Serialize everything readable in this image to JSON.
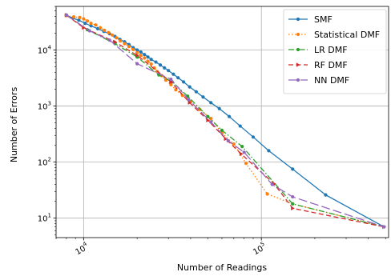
{
  "chart_data": {
    "type": "line",
    "title": "",
    "xlabel": "Number of Readings",
    "ylabel": "Number of Errors",
    "xscale": "log",
    "yscale": "log",
    "xlim": [
      7000,
      520000
    ],
    "ylim": [
      4.5,
      60000
    ],
    "x_ticks": [
      {
        "value": 10000,
        "base": "10",
        "exp": "4"
      },
      {
        "value": 100000,
        "base": "10",
        "exp": "5"
      }
    ],
    "y_ticks": [
      {
        "value": 10,
        "base": "10",
        "exp": "1"
      },
      {
        "value": 100,
        "base": "10",
        "exp": "2"
      },
      {
        "value": 1000,
        "base": "10",
        "exp": "3"
      },
      {
        "value": 10000,
        "base": "10",
        "exp": "4"
      }
    ],
    "grid": true,
    "legend_position": "top-right",
    "series": [
      {
        "name": "SMF",
        "color": "#1f77b4",
        "dash": "",
        "marker": "circle",
        "points": [
          [
            8000,
            42000
          ],
          [
            8700,
            37000
          ],
          [
            9400,
            34000
          ],
          [
            10200,
            30000
          ],
          [
            11000,
            27000
          ],
          [
            12000,
            24000
          ],
          [
            13000,
            21500
          ],
          [
            14000,
            19500
          ],
          [
            15000,
            17500
          ],
          [
            16000,
            15500
          ],
          [
            17000,
            14000
          ],
          [
            18000,
            12500
          ],
          [
            19000,
            11000
          ],
          [
            20000,
            10000
          ],
          [
            21000,
            9200
          ],
          [
            22000,
            8300
          ],
          [
            23000,
            7500
          ],
          [
            24000,
            6800
          ],
          [
            25500,
            6100
          ],
          [
            27000,
            5400
          ],
          [
            28500,
            4800
          ],
          [
            30000,
            4300
          ],
          [
            32000,
            3700
          ],
          [
            34000,
            3200
          ],
          [
            36500,
            2700
          ],
          [
            39500,
            2200
          ],
          [
            43000,
            1800
          ],
          [
            47000,
            1450
          ],
          [
            52000,
            1150
          ],
          [
            58000,
            900
          ],
          [
            66000,
            650
          ],
          [
            76000,
            440
          ],
          [
            90000,
            280
          ],
          [
            110000,
            160
          ],
          [
            150000,
            75
          ],
          [
            230000,
            26
          ],
          [
            490000,
            7
          ]
        ]
      },
      {
        "name": "Statistical DMF",
        "color": "#ff7f0e",
        "dash": "1.5,2.5",
        "marker": "circle",
        "points": [
          [
            8000,
            41000
          ],
          [
            8800,
            39000
          ],
          [
            9500,
            38000
          ],
          [
            10000,
            36000
          ],
          [
            10500,
            33000
          ],
          [
            11000,
            30000
          ],
          [
            11700,
            28000
          ],
          [
            12400,
            25000
          ],
          [
            13100,
            22500
          ],
          [
            13800,
            20500
          ],
          [
            14500,
            18500
          ],
          [
            15300,
            16500
          ],
          [
            16100,
            14500
          ],
          [
            17000,
            13000
          ],
          [
            18000,
            11500
          ],
          [
            19000,
            10200
          ],
          [
            20000,
            9000
          ],
          [
            21000,
            8000
          ],
          [
            22000,
            7200
          ],
          [
            23000,
            6300
          ],
          [
            24000,
            5600
          ],
          [
            25000,
            4800
          ],
          [
            26000,
            4100
          ],
          [
            27500,
            3500
          ],
          [
            29000,
            2900
          ],
          [
            31000,
            2400
          ],
          [
            33000,
            1950
          ],
          [
            36000,
            1550
          ],
          [
            40000,
            1200
          ],
          [
            45000,
            870
          ],
          [
            52000,
            600
          ],
          [
            60000,
            330
          ],
          [
            70000,
            210
          ],
          [
            82000,
            95
          ],
          [
            108000,
            27
          ],
          [
            150000,
            18
          ],
          [
            490000,
            7
          ]
        ]
      },
      {
        "name": "LR DMF",
        "color": "#2ca02c",
        "dash": "7,2.5,1.5,2.5",
        "marker": "circle",
        "points": [
          [
            8000,
            42000
          ],
          [
            10500,
            23000
          ],
          [
            15000,
            13000
          ],
          [
            20000,
            7500
          ],
          [
            26500,
            3600
          ],
          [
            31500,
            2700
          ],
          [
            38500,
            1500
          ],
          [
            50000,
            650
          ],
          [
            60000,
            370
          ],
          [
            78000,
            190
          ],
          [
            150000,
            18
          ],
          [
            490000,
            7
          ]
        ]
      },
      {
        "name": "RF DMF",
        "color": "#d62728",
        "dash": "6,3.5",
        "marker": "triangle-right",
        "points": [
          [
            8000,
            42000
          ],
          [
            10000,
            25000
          ],
          [
            15000,
            14000
          ],
          [
            20000,
            8000
          ],
          [
            31000,
            2700
          ],
          [
            39500,
            1150
          ],
          [
            50000,
            560
          ],
          [
            63000,
            260
          ],
          [
            77000,
            140
          ],
          [
            118000,
            41
          ],
          [
            150000,
            15
          ],
          [
            490000,
            7
          ]
        ]
      },
      {
        "name": "NN DMF",
        "color": "#9467bd",
        "dash": "11,4",
        "marker": "circle",
        "points": [
          [
            8000,
            42000
          ],
          [
            10800,
            22000
          ],
          [
            14000,
            15000
          ],
          [
            20000,
            5700
          ],
          [
            31000,
            3000
          ],
          [
            39000,
            1300
          ],
          [
            52000,
            520
          ],
          [
            65000,
            240
          ],
          [
            80000,
            150
          ],
          [
            115000,
            40
          ],
          [
            150000,
            24
          ],
          [
            490000,
            7
          ]
        ]
      }
    ]
  }
}
